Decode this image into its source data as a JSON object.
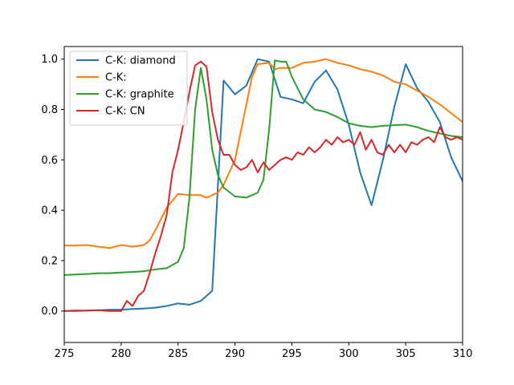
{
  "chart_data": {
    "type": "line",
    "title": "",
    "xlabel": "",
    "ylabel": "",
    "xlim": [
      275,
      310
    ],
    "ylim": [
      -0.125,
      1.05
    ],
    "x_ticks": [
      275,
      280,
      285,
      290,
      295,
      300,
      305,
      310
    ],
    "y_ticks": [
      0.0,
      0.2,
      0.4,
      0.6,
      0.8,
      1.0
    ],
    "x_tick_labels": [
      "275",
      "280",
      "285",
      "290",
      "295",
      "300",
      "305",
      "310"
    ],
    "y_tick_labels": [
      "0.0",
      "0.2",
      "0.4",
      "0.6",
      "0.8",
      "1.0"
    ],
    "grid": false,
    "legend_position": "top-left",
    "series": [
      {
        "name": "C-K: diamond",
        "color": "#1f77b4",
        "x": [
          275,
          276,
          277,
          278,
          279,
          280,
          281,
          282,
          283,
          284,
          285,
          286,
          287,
          288,
          289,
          290,
          291,
          292,
          293,
          294,
          295,
          296,
          297,
          298,
          299,
          300,
          301,
          302,
          303,
          304,
          305,
          306,
          307,
          308,
          309,
          310
        ],
        "y": [
          0.0,
          0.0,
          0.002,
          0.003,
          0.005,
          0.005,
          0.008,
          0.01,
          0.013,
          0.02,
          0.03,
          0.025,
          0.04,
          0.08,
          0.915,
          0.86,
          0.895,
          1.0,
          0.99,
          0.85,
          0.84,
          0.825,
          0.91,
          0.955,
          0.88,
          0.74,
          0.55,
          0.42,
          0.6,
          0.81,
          0.98,
          0.885,
          0.83,
          0.75,
          0.61,
          0.515
        ]
      },
      {
        "name": "C-K:",
        "color": "#ff7f0e",
        "x": [
          275,
          276,
          277,
          278,
          279,
          280,
          281,
          282,
          282.5,
          283,
          284,
          285,
          286,
          287,
          287.5,
          288,
          288.5,
          289,
          290,
          291,
          291.5,
          292,
          293,
          293.5,
          294,
          295,
          296,
          297,
          298,
          299,
          300,
          301,
          302,
          303,
          304,
          305,
          306,
          307,
          308,
          309,
          310
        ],
        "y": [
          0.26,
          0.26,
          0.262,
          0.255,
          0.25,
          0.262,
          0.255,
          0.262,
          0.28,
          0.32,
          0.41,
          0.465,
          0.46,
          0.46,
          0.45,
          0.46,
          0.47,
          0.5,
          0.6,
          0.82,
          0.93,
          0.98,
          0.985,
          0.96,
          0.965,
          0.965,
          0.985,
          0.99,
          1.0,
          0.985,
          0.975,
          0.96,
          0.95,
          0.935,
          0.91,
          0.9,
          0.875,
          0.85,
          0.82,
          0.785,
          0.75
        ]
      },
      {
        "name": "C-K: graphite",
        "color": "#2ca02c",
        "x": [
          275,
          276,
          277,
          278,
          279,
          280,
          281,
          282,
          283,
          284,
          285,
          285.5,
          286,
          286.5,
          287,
          287.5,
          288,
          288.5,
          289,
          290,
          291,
          292,
          292.5,
          293,
          293.5,
          294,
          294.5,
          295,
          296,
          297,
          298,
          299,
          300,
          301,
          302,
          303,
          304,
          305,
          306,
          307,
          308,
          309,
          310
        ],
        "y": [
          0.143,
          0.145,
          0.147,
          0.15,
          0.15,
          0.153,
          0.155,
          0.158,
          0.165,
          0.17,
          0.195,
          0.25,
          0.45,
          0.8,
          0.965,
          0.84,
          0.64,
          0.54,
          0.49,
          0.455,
          0.45,
          0.47,
          0.52,
          0.72,
          0.995,
          0.99,
          0.99,
          0.93,
          0.84,
          0.8,
          0.79,
          0.77,
          0.745,
          0.735,
          0.73,
          0.735,
          0.738,
          0.74,
          0.73,
          0.715,
          0.705,
          0.695,
          0.69
        ]
      },
      {
        "name": "C-K: CN",
        "color": "#d62728",
        "x": [
          275,
          276,
          277,
          278,
          279,
          280,
          280.5,
          281,
          281.5,
          282,
          282.5,
          283,
          283.5,
          284,
          284.5,
          285,
          285.5,
          286,
          286.5,
          287,
          287.5,
          288,
          288.5,
          289,
          289.5,
          290,
          290.5,
          291,
          291.5,
          292,
          292.5,
          293,
          293.5,
          294,
          294.5,
          295,
          295.5,
          296,
          296.5,
          297,
          297.5,
          298,
          298.5,
          299,
          299.5,
          300,
          300.5,
          301,
          301.5,
          302,
          302.5,
          303,
          303.5,
          304,
          304.5,
          305,
          305.5,
          306,
          306.5,
          307,
          307.5,
          308,
          308.5,
          309,
          309.5,
          310
        ],
        "y": [
          0.0,
          0.002,
          0.001,
          0.003,
          0.0,
          0.0,
          0.04,
          0.02,
          0.06,
          0.08,
          0.15,
          0.23,
          0.3,
          0.38,
          0.55,
          0.64,
          0.75,
          0.87,
          0.975,
          0.99,
          0.97,
          0.79,
          0.68,
          0.62,
          0.62,
          0.58,
          0.56,
          0.57,
          0.6,
          0.55,
          0.59,
          0.56,
          0.58,
          0.6,
          0.61,
          0.6,
          0.63,
          0.62,
          0.65,
          0.63,
          0.65,
          0.68,
          0.66,
          0.69,
          0.67,
          0.68,
          0.66,
          0.71,
          0.64,
          0.68,
          0.63,
          0.62,
          0.66,
          0.63,
          0.66,
          0.63,
          0.67,
          0.66,
          0.68,
          0.69,
          0.67,
          0.73,
          0.69,
          0.68,
          0.69,
          0.68
        ]
      }
    ]
  }
}
